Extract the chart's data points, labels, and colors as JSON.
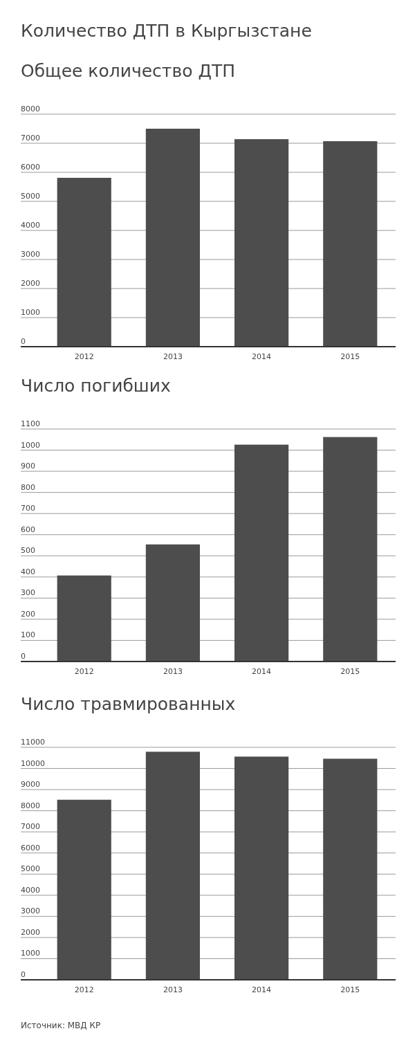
{
  "chart_data": [
    {
      "type": "bar",
      "title": "Количество ДТП в Кыргызстане",
      "subtitle": "Общее количество ДТП",
      "categories": [
        "2012",
        "2013",
        "2014",
        "2015"
      ],
      "values": [
        5810,
        7500,
        7140,
        7070
      ],
      "color": "#4d4d4d",
      "ylim": [
        0,
        8000
      ],
      "yticks": [
        0,
        1000,
        2000,
        3000,
        4000,
        5000,
        6000,
        7000,
        8000
      ],
      "grid": "y"
    },
    {
      "type": "bar",
      "title": "Число погибших",
      "categories": [
        "2012",
        "2013",
        "2014",
        "2015"
      ],
      "values": [
        407,
        554,
        1026,
        1062
      ],
      "color": "#4d4d4d",
      "ylim": [
        0,
        1100
      ],
      "yticks": [
        0,
        100,
        200,
        300,
        400,
        500,
        600,
        700,
        800,
        900,
        1000,
        1100
      ],
      "grid": "y"
    },
    {
      "type": "bar",
      "title": "Число травмированных",
      "categories": [
        "2012",
        "2013",
        "2014",
        "2015"
      ],
      "values": [
        8520,
        10790,
        10560,
        10460
      ],
      "color": "#4d4d4d",
      "ylim": [
        0,
        11000
      ],
      "yticks": [
        0,
        1000,
        2000,
        3000,
        4000,
        5000,
        6000,
        7000,
        8000,
        9000,
        10000,
        11000
      ],
      "grid": "y",
      "annotations": [
        "Источник: МВД КР"
      ]
    }
  ]
}
